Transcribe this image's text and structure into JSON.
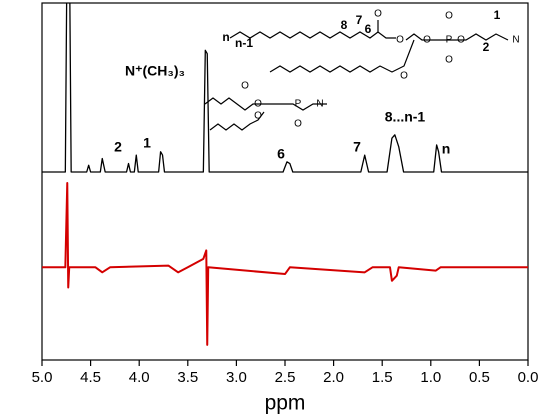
{
  "chart_data": [
    {
      "type": "line",
      "xlim": [
        5,
        0
      ],
      "ylim": [
        0,
        1
      ],
      "series": [
        {
          "color": "#000000",
          "x": [
            5.0,
            4.76,
            4.74,
            4.72,
            4.7,
            4.54,
            4.52,
            4.5,
            4.4,
            4.38,
            4.35,
            4.13,
            4.11,
            4.09,
            4.05,
            4.03,
            4.01,
            3.8,
            3.78,
            3.76,
            3.74,
            3.34,
            3.32,
            3.3,
            3.28,
            2.52,
            2.48,
            2.45,
            2.42,
            1.72,
            1.68,
            1.64,
            1.45,
            1.4,
            1.37,
            1.33,
            1.28,
            0.97,
            0.94,
            0.92,
            0.89,
            0.0
          ],
          "values": [
            0,
            0,
            1.5,
            1.5,
            0,
            0,
            0.04,
            0,
            0,
            0.08,
            0,
            0,
            0.05,
            0,
            0,
            0.1,
            0,
            0,
            0.12,
            0.1,
            0,
            0,
            0.72,
            0.7,
            0,
            0,
            0.06,
            0.05,
            0,
            0,
            0.1,
            0,
            0,
            0.2,
            0.22,
            0.15,
            0,
            0,
            0.16,
            0.12,
            0,
            0
          ]
        }
      ],
      "annotations": [
        "2",
        "1",
        "N⁺(CH₃)₃",
        "6",
        "7",
        "8...n-1",
        "n"
      ],
      "structure_labels": [
        "n-1",
        "n",
        "8",
        "7",
        "6",
        "O",
        "O",
        "O",
        "P",
        "O",
        "O",
        "O",
        "O",
        "1",
        "2",
        "N",
        "O",
        "O",
        "O",
        "P",
        "O",
        "N"
      ]
    },
    {
      "type": "line",
      "xlim": [
        5,
        0
      ],
      "ylim": [
        -0.55,
        0.5
      ],
      "xticks": [
        {
          "value": 5,
          "label": "5.0"
        },
        4.5,
        {
          "value": 4,
          "label": "4.0"
        },
        3.5,
        {
          "value": 3,
          "label": "3.0"
        },
        2.5,
        {
          "value": 2,
          "label": "2.0"
        },
        1.5,
        {
          "value": 1,
          "label": "1.0"
        },
        0.5,
        {
          "value": 0,
          "label": "0.0"
        }
      ],
      "xlabel": "ppm",
      "series": [
        {
          "color": "#d40000",
          "x": [
            5.0,
            4.76,
            4.74,
            4.73,
            4.72,
            4.45,
            4.38,
            4.3,
            3.7,
            3.6,
            3.5,
            3.34,
            3.31,
            3.3,
            3.29,
            2.5,
            2.45,
            1.68,
            1.6,
            1.42,
            1.4,
            1.35,
            1.33,
            0.95,
            0.9,
            0.0
          ],
          "values": [
            0,
            0,
            0.5,
            -0.12,
            0,
            0,
            -0.03,
            0,
            0.01,
            -0.03,
            0,
            0.05,
            0.1,
            -0.46,
            0,
            -0.04,
            0,
            -0.03,
            0,
            0,
            -0.08,
            -0.05,
            0,
            -0.02,
            0,
            0
          ]
        }
      ]
    }
  ]
}
